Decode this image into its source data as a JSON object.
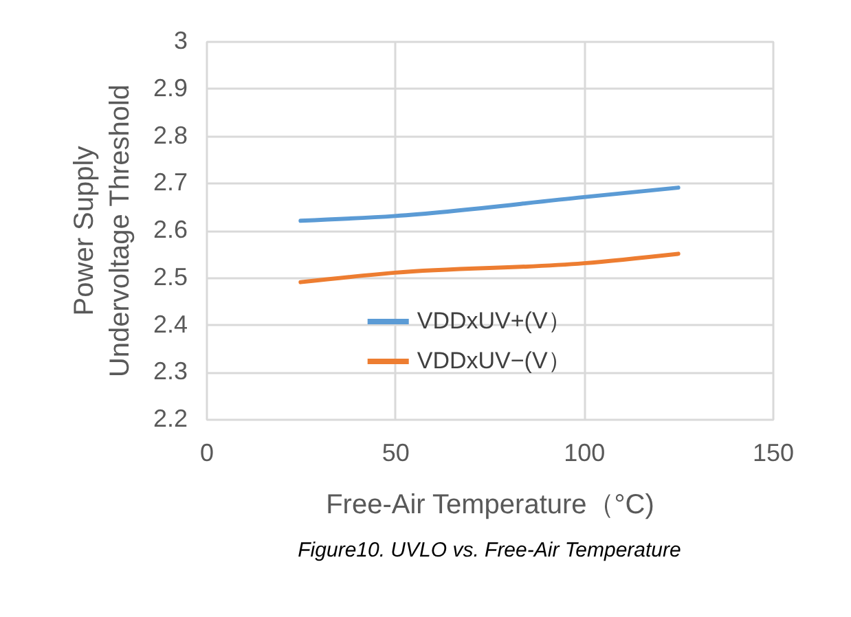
{
  "chart_data": {
    "type": "line",
    "xlabel": "Free-Air Temperature（°C)",
    "ylabel": "Power Supply Undervoltage Threshold",
    "x": [
      25,
      50,
      100,
      125
    ],
    "series": [
      {
        "name": "VDDxUV+(V）",
        "color": "#5b9bd5",
        "values": [
          2.62,
          2.63,
          2.67,
          2.69
        ]
      },
      {
        "name": "VDDxUV−(V）",
        "color": "#ed7d31",
        "values": [
          2.49,
          2.51,
          2.53,
          2.55
        ]
      }
    ],
    "xlim": [
      0,
      150
    ],
    "xticks": [
      0,
      50,
      100,
      150
    ],
    "ylim": [
      2.2,
      3
    ],
    "yticks": [
      2.2,
      2.3,
      2.4,
      2.5,
      2.6,
      2.7,
      2.8,
      2.9,
      3
    ],
    "grid": true,
    "legend": "bottom",
    "marker": "none",
    "line_style": "solid",
    "annotations": [
      "Figure10. UVLO vs. Free-Air Temperature"
    ]
  }
}
